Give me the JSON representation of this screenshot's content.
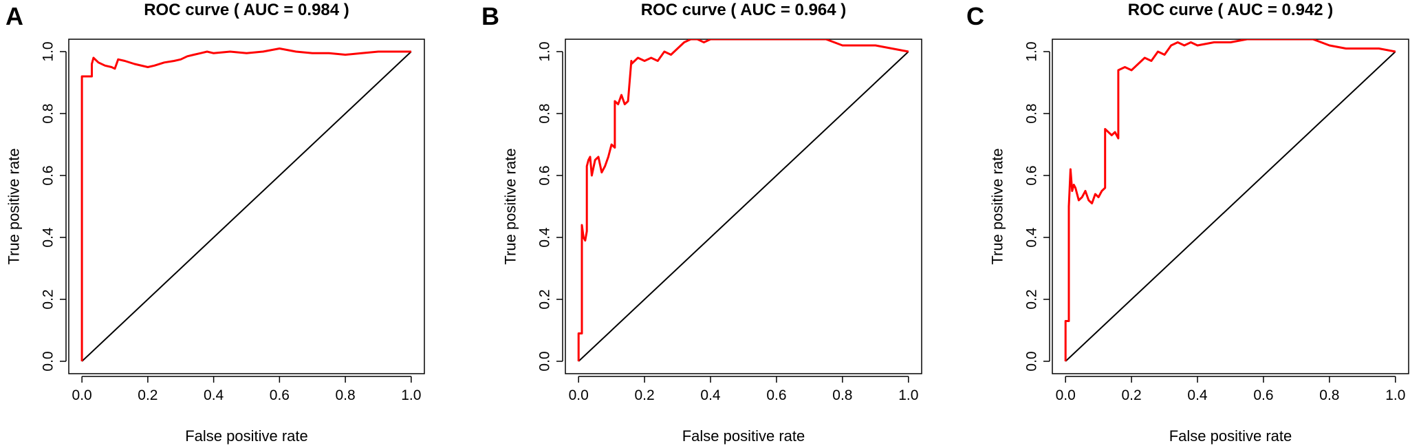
{
  "colors": {
    "roc": "#ff0000",
    "diagonal": "#000000"
  },
  "chart_data": [
    {
      "type": "line",
      "panel": "A",
      "title": "ROC curve ( AUC =  0.984 )",
      "xlabel": "False positive rate",
      "ylabel": "True positive rate",
      "xlim": [
        0,
        1
      ],
      "ylim": [
        0,
        1
      ],
      "xticks": [
        "0.0",
        "0.2",
        "0.4",
        "0.6",
        "0.8",
        "1.0"
      ],
      "yticks": [
        "0.0",
        "0.2",
        "0.4",
        "0.6",
        "0.8",
        "1.0"
      ],
      "series": [
        {
          "x": [
            0,
            0,
            0.03,
            0.03,
            0.035,
            0.05,
            0.07,
            0.09,
            0.1,
            0.105,
            0.11,
            0.13,
            0.16,
            0.2,
            0.22,
            0.25,
            0.28,
            0.3,
            0.32,
            0.34,
            0.36,
            0.38,
            0.4,
            0.45,
            0.5,
            0.55,
            0.6,
            0.65,
            0.7,
            0.75,
            0.8,
            0.85,
            0.9,
            0.95,
            1.0
          ],
          "y": [
            0,
            0.92,
            0.92,
            0.96,
            0.98,
            0.965,
            0.955,
            0.95,
            0.945,
            0.96,
            0.975,
            0.97,
            0.96,
            0.95,
            0.955,
            0.965,
            0.97,
            0.975,
            0.985,
            0.99,
            0.995,
            1.0,
            0.995,
            1.0,
            0.995,
            1.0,
            1.01,
            1.0,
            0.995,
            0.995,
            0.99,
            0.995,
            1.0,
            1.0,
            1.0
          ]
        }
      ],
      "reference_line": {
        "x": [
          0,
          1
        ],
        "y": [
          0,
          1
        ]
      }
    },
    {
      "type": "line",
      "panel": "B",
      "title": "ROC curve ( AUC =  0.964 )",
      "xlabel": "False positive rate",
      "ylabel": "True positive rate",
      "xlim": [
        0,
        1
      ],
      "ylim": [
        0,
        1
      ],
      "xticks": [
        "0.0",
        "0.2",
        "0.4",
        "0.6",
        "0.8",
        "1.0"
      ],
      "yticks": [
        "0.0",
        "0.2",
        "0.4",
        "0.6",
        "0.8",
        "1.0"
      ],
      "series": [
        {
          "x": [
            0,
            0,
            0.01,
            0.01,
            0.015,
            0.02,
            0.025,
            0.025,
            0.03,
            0.035,
            0.04,
            0.05,
            0.06,
            0.07,
            0.08,
            0.09,
            0.1,
            0.11,
            0.11,
            0.12,
            0.13,
            0.14,
            0.15,
            0.16,
            0.16,
            0.18,
            0.2,
            0.22,
            0.24,
            0.26,
            0.28,
            0.3,
            0.32,
            0.34,
            0.36,
            0.38,
            0.4,
            0.45,
            0.5,
            0.55,
            0.6,
            0.65,
            0.7,
            0.75,
            0.8,
            0.85,
            0.9,
            0.95,
            1.0
          ],
          "y": [
            0,
            0.09,
            0.09,
            0.44,
            0.4,
            0.39,
            0.42,
            0.63,
            0.65,
            0.66,
            0.6,
            0.65,
            0.66,
            0.61,
            0.63,
            0.66,
            0.7,
            0.69,
            0.84,
            0.83,
            0.86,
            0.83,
            0.84,
            0.97,
            0.96,
            0.98,
            0.97,
            0.98,
            0.97,
            1.0,
            0.99,
            1.01,
            1.03,
            1.04,
            1.04,
            1.03,
            1.04,
            1.04,
            1.04,
            1.04,
            1.04,
            1.04,
            1.04,
            1.04,
            1.02,
            1.02,
            1.02,
            1.01,
            1.0
          ]
        }
      ],
      "reference_line": {
        "x": [
          0,
          1
        ],
        "y": [
          0,
          1
        ]
      }
    },
    {
      "type": "line",
      "panel": "C",
      "title": "ROC curve ( AUC =  0.942 )",
      "xlabel": "False positive rate",
      "ylabel": "True positive rate",
      "xlim": [
        0,
        1
      ],
      "ylim": [
        0,
        1
      ],
      "xticks": [
        "0.0",
        "0.2",
        "0.4",
        "0.6",
        "0.8",
        "1.0"
      ],
      "yticks": [
        "0.0",
        "0.2",
        "0.4",
        "0.6",
        "0.8",
        "1.0"
      ],
      "series": [
        {
          "x": [
            0,
            0,
            0.01,
            0.01,
            0.015,
            0.02,
            0.025,
            0.03,
            0.04,
            0.05,
            0.06,
            0.07,
            0.08,
            0.09,
            0.1,
            0.11,
            0.12,
            0.12,
            0.13,
            0.14,
            0.15,
            0.16,
            0.16,
            0.18,
            0.2,
            0.22,
            0.24,
            0.26,
            0.28,
            0.3,
            0.32,
            0.34,
            0.36,
            0.38,
            0.4,
            0.45,
            0.5,
            0.55,
            0.6,
            0.65,
            0.7,
            0.75,
            0.8,
            0.85,
            0.9,
            0.95,
            1.0
          ],
          "y": [
            0,
            0.13,
            0.13,
            0.5,
            0.62,
            0.55,
            0.57,
            0.56,
            0.52,
            0.53,
            0.55,
            0.52,
            0.51,
            0.54,
            0.53,
            0.55,
            0.56,
            0.75,
            0.74,
            0.73,
            0.74,
            0.72,
            0.94,
            0.95,
            0.94,
            0.96,
            0.98,
            0.97,
            1.0,
            0.99,
            1.02,
            1.03,
            1.02,
            1.03,
            1.02,
            1.03,
            1.03,
            1.04,
            1.04,
            1.04,
            1.04,
            1.04,
            1.02,
            1.01,
            1.01,
            1.01,
            1.0
          ]
        }
      ],
      "reference_line": {
        "x": [
          0,
          1
        ],
        "y": [
          0,
          1
        ]
      }
    }
  ]
}
